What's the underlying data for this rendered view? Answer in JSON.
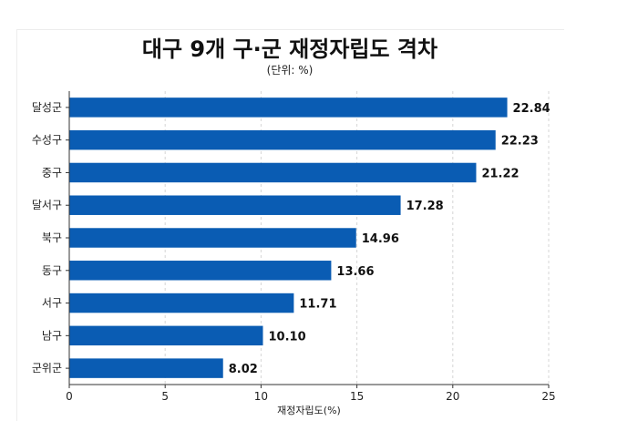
{
  "chart_data": {
    "type": "bar",
    "orientation": "horizontal",
    "title": "대구 9개 구·군 재정자립도 격차",
    "subtitle": "(단위: %)",
    "xlabel": "재정자립도(%)",
    "xlim": [
      0,
      25
    ],
    "xticks": [
      0,
      5,
      10,
      15,
      20,
      25
    ],
    "grid": "vertical-dashed",
    "categories": [
      "달성군",
      "수성구",
      "중구",
      "달서구",
      "북구",
      "동구",
      "서구",
      "남구",
      "군위군"
    ],
    "values": [
      22.84,
      22.23,
      21.22,
      17.28,
      14.96,
      13.66,
      11.71,
      10.1,
      8.02
    ],
    "value_labels": [
      "22.84",
      "22.23",
      "21.22",
      "17.28",
      "14.96",
      "13.66",
      "11.71",
      "10.10",
      "8.02"
    ],
    "bar_color": "#0a5cb3"
  }
}
